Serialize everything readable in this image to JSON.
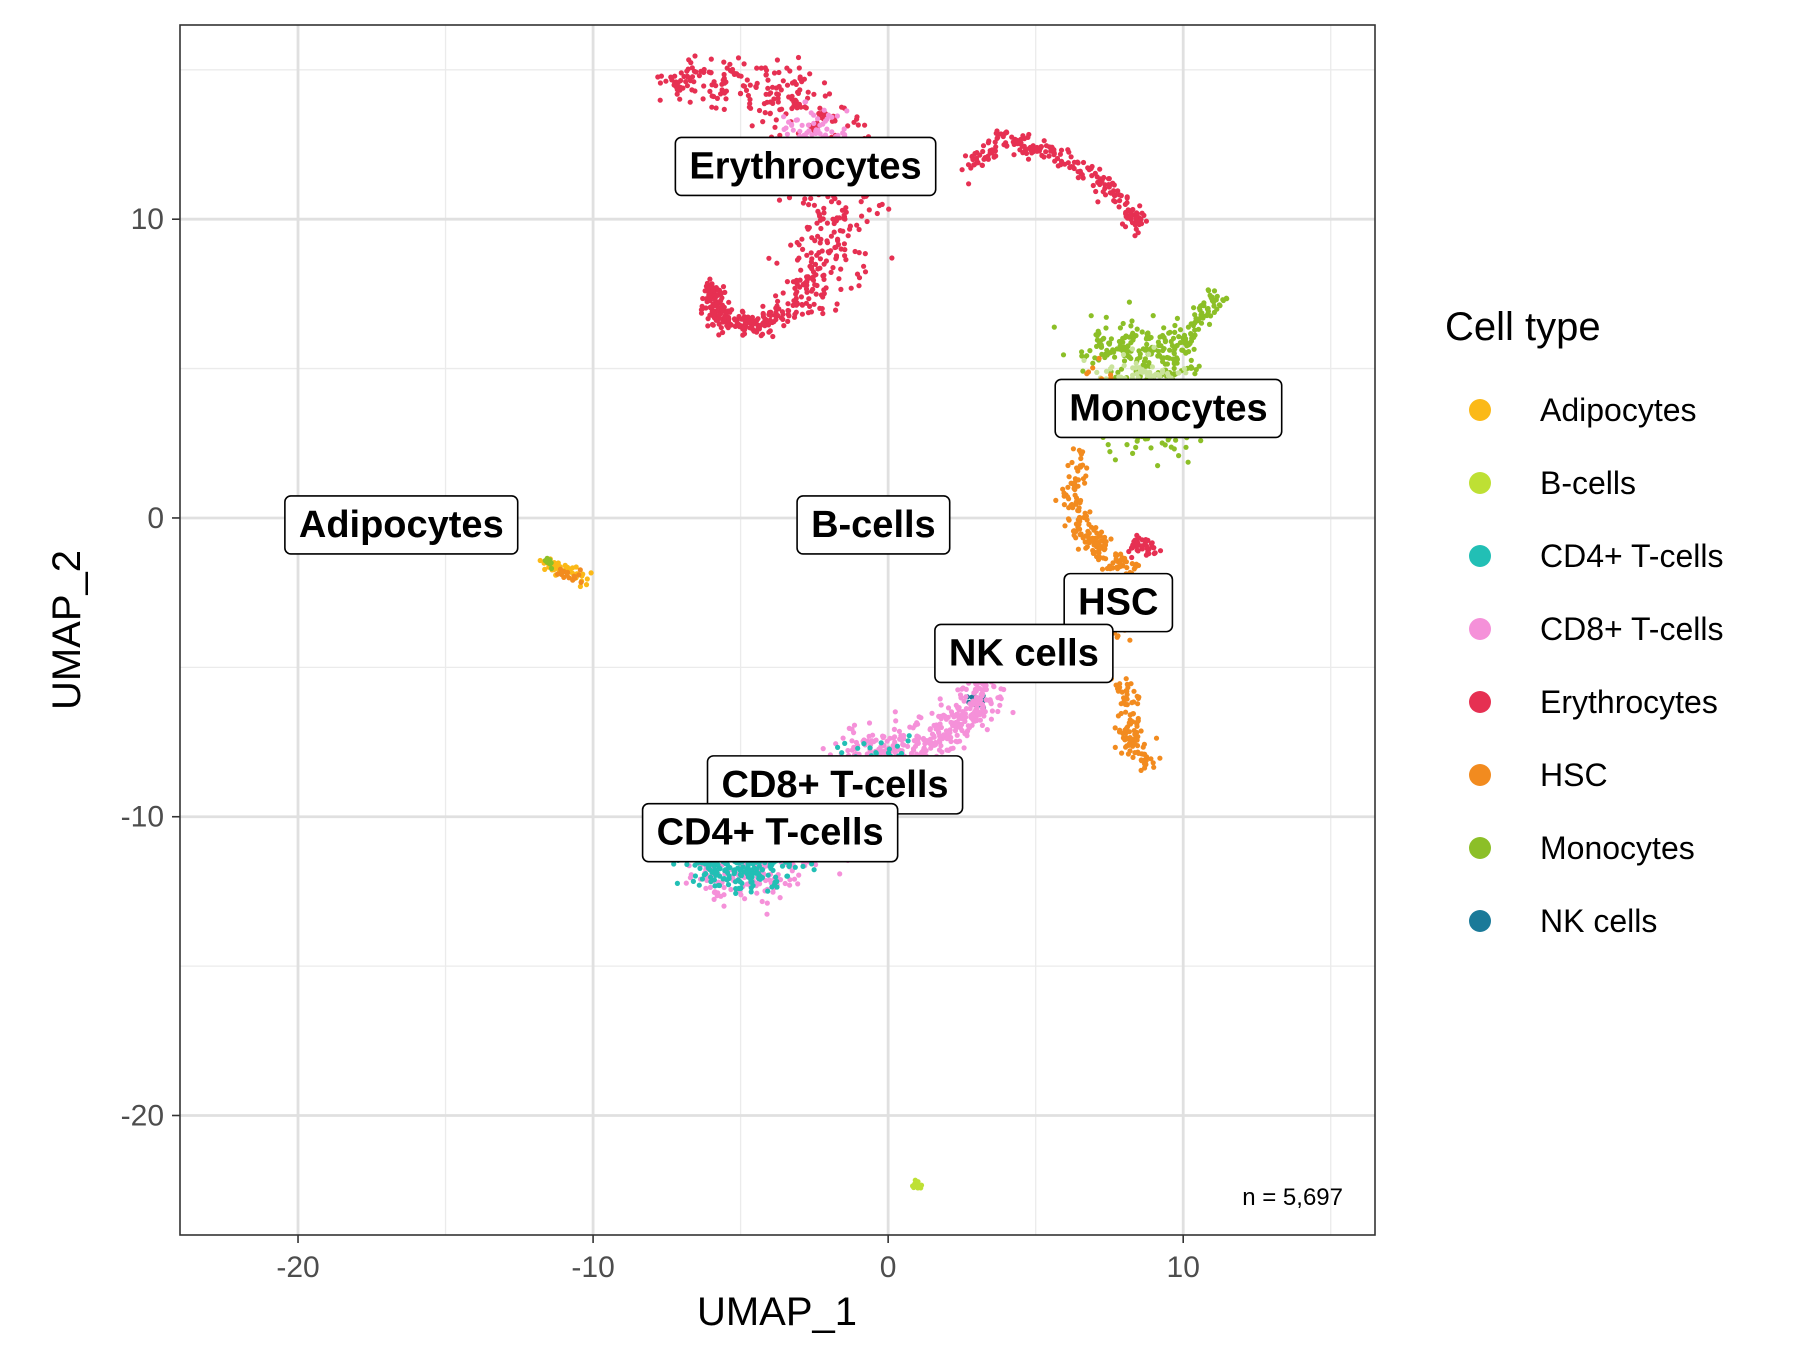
{
  "chart_data": {
    "type": "scatter",
    "title": "",
    "xlabel": "UMAP_1",
    "ylabel": "UMAP_2",
    "xlim": [
      -24,
      16.5
    ],
    "ylim": [
      -24,
      16.5
    ],
    "x_ticks": [
      -20,
      -10,
      0,
      10
    ],
    "y_ticks": [
      -20,
      -10,
      0,
      10
    ],
    "x_tick_labels": [
      "-20",
      "-10",
      "0",
      "10"
    ],
    "y_tick_labels": [
      "-20",
      "-10",
      "0",
      "10"
    ],
    "grid": true,
    "legend_title": "Cell type",
    "legend_position": "right",
    "annotation": "n = 5,697",
    "series": [
      {
        "name": "Adipocytes",
        "color": "#FBB917"
      },
      {
        "name": "B-cells",
        "color": "#BEE034"
      },
      {
        "name": "CD4+ T-cells",
        "color": "#22BFB5"
      },
      {
        "name": "CD8+ T-cells",
        "color": "#F591D9"
      },
      {
        "name": "Erythrocytes",
        "color": "#E63052"
      },
      {
        "name": "HSC",
        "color": "#F28B1F"
      },
      {
        "name": "Monocytes",
        "color": "#8CBF27"
      },
      {
        "name": "NK cells",
        "color": "#1A7A99"
      }
    ],
    "cluster_labels": [
      {
        "text": "Erythrocytes",
        "x": -2.8,
        "y": 11.8
      },
      {
        "text": "Monocytes",
        "x": 9.5,
        "y": 3.7
      },
      {
        "text": "Adipocytes",
        "x": -16.5,
        "y": -0.2
      },
      {
        "text": "B-cells",
        "x": -0.5,
        "y": -0.2
      },
      {
        "text": "HSC",
        "x": 7.8,
        "y": -2.8
      },
      {
        "text": "NK cells",
        "x": 4.6,
        "y": -4.5
      },
      {
        "text": "CD8+ T-cells",
        "x": -1.8,
        "y": -8.9
      },
      {
        "text": "CD4+ T-cells",
        "x": -4.0,
        "y": -10.5
      }
    ]
  }
}
